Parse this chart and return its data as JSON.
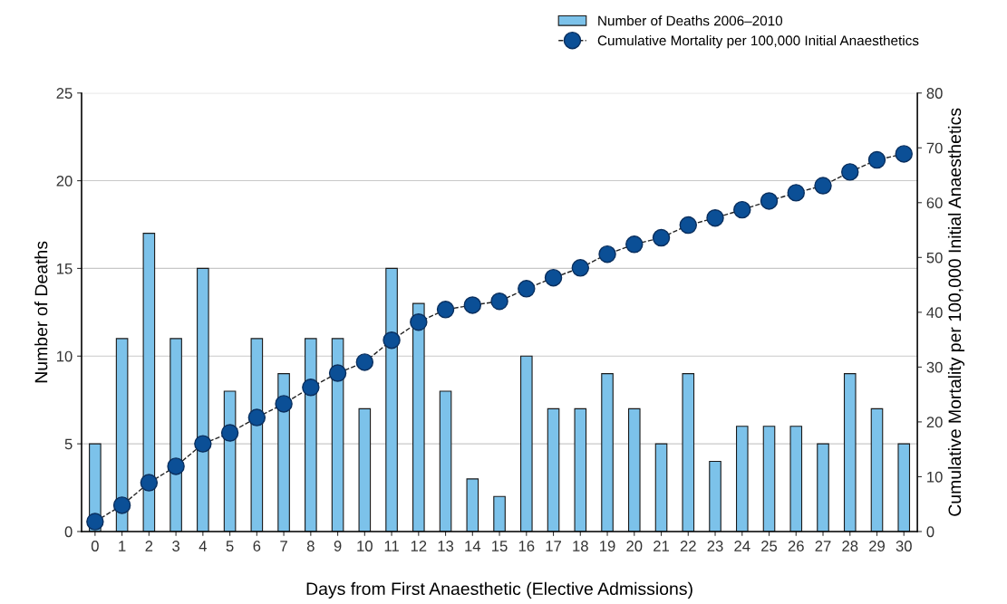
{
  "chart_data": {
    "type": "bar",
    "xlabel": "Days from First Anaesthetic (Elective Admissions)",
    "ylabel": "Number of Deaths",
    "y2label": "Cumulative Mortality per 100,000 Initial Anaesthetics",
    "categories": [
      "0",
      "1",
      "2",
      "3",
      "4",
      "5",
      "6",
      "7",
      "8",
      "9",
      "10",
      "11",
      "12",
      "13",
      "14",
      "15",
      "16",
      "17",
      "18",
      "19",
      "20",
      "21",
      "22",
      "23",
      "24",
      "25",
      "26",
      "27",
      "28",
      "29",
      "30"
    ],
    "series": [
      {
        "name": "Number of Deaths 2006–2010",
        "color": "#7cc2ea",
        "values": [
          5,
          11,
          17,
          11,
          15,
          8,
          11,
          9,
          11,
          11,
          7,
          15,
          13,
          8,
          3,
          2,
          10,
          7,
          7,
          9,
          7,
          5,
          9,
          4,
          6,
          6,
          6,
          5,
          9,
          7,
          5
        ]
      },
      {
        "name": "Cumulative Mortality per 100,000 Initial Anaesthetics",
        "type": "line",
        "axis": "y2",
        "color": "#0b4f96",
        "marker": "circle",
        "line_style": "dashed",
        "values": [
          1.8,
          4.8,
          8.9,
          11.9,
          16.0,
          18.0,
          20.8,
          23.3,
          26.3,
          28.9,
          30.9,
          34.9,
          38.2,
          40.5,
          41.3,
          42.0,
          44.3,
          46.3,
          48.1,
          50.6,
          52.4,
          53.6,
          55.9,
          57.2,
          58.7,
          60.3,
          61.8,
          63.1,
          65.6,
          67.8,
          68.9
        ]
      }
    ],
    "ylim": [
      0,
      25
    ],
    "yticks": [
      0,
      5,
      10,
      15,
      20,
      25
    ],
    "y2lim": [
      0,
      80
    ],
    "y2ticks": [
      0,
      10,
      20,
      30,
      40,
      50,
      60,
      70,
      80
    ],
    "grid": "y",
    "legend": "top right"
  }
}
